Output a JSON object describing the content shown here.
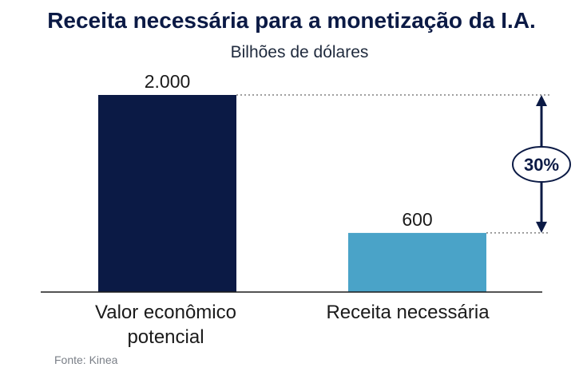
{
  "chart_data": {
    "type": "bar",
    "title": "Receita necessária para a monetização da I.A.",
    "subtitle": "Bilhões de dólares",
    "categories": [
      [
        "Valor econômico",
        "potencial"
      ],
      [
        "Receita necessária"
      ]
    ],
    "values": [
      2000,
      600
    ],
    "value_labels": [
      "2.000",
      "600"
    ],
    "bar_colors": [
      "#0b1a45",
      "#4aa3c8"
    ],
    "ylim": [
      0,
      2000
    ],
    "grid": false,
    "annotation": {
      "label": "30%",
      "from_value": 2000,
      "to_value": 600
    },
    "source": "Fonte: Kinea"
  }
}
